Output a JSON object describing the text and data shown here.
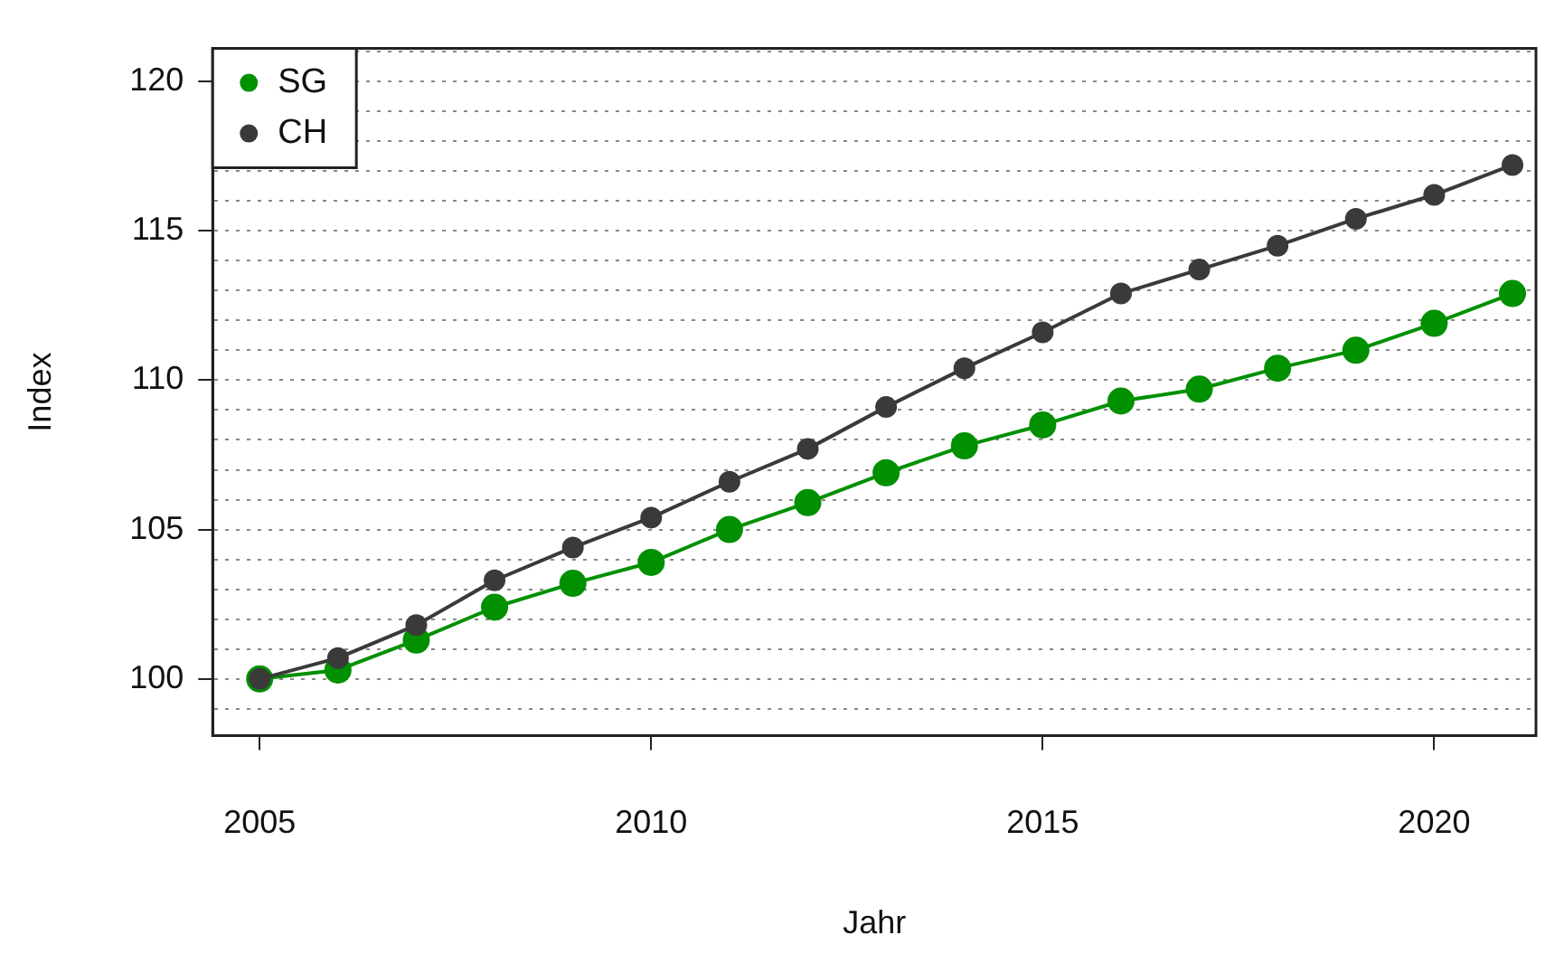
{
  "chart_data": {
    "type": "line",
    "xlabel": "Jahr",
    "ylabel": "Index",
    "x": [
      2005,
      2006,
      2007,
      2008,
      2009,
      2010,
      2011,
      2012,
      2013,
      2014,
      2015,
      2016,
      2017,
      2018,
      2019,
      2020,
      2021
    ],
    "series": [
      {
        "name": "SG",
        "color": "#009000",
        "values": [
          100,
          100.3,
          101.3,
          102.4,
          103.2,
          103.9,
          105.0,
          105.9,
          106.9,
          107.8,
          108.5,
          109.3,
          109.7,
          110.4,
          111.0,
          111.9,
          112.9
        ]
      },
      {
        "name": "CH",
        "color": "#3a3a3a",
        "values": [
          100,
          100.7,
          101.8,
          103.3,
          104.4,
          105.4,
          106.6,
          107.7,
          109.1,
          110.4,
          111.6,
          112.9,
          113.7,
          114.5,
          115.4,
          116.2,
          117.2
        ]
      }
    ],
    "xlim": [
      2004.4,
      2021.3
    ],
    "xticks": [
      2005,
      2010,
      2015,
      2020
    ],
    "ylim": [
      98.1,
      121.1
    ],
    "yticks": [
      {
        "value": 99,
        "label": null
      },
      100,
      {
        "value": 101,
        "label": null
      },
      {
        "value": 102,
        "label": null
      },
      {
        "value": 103,
        "label": null
      },
      {
        "value": 104,
        "label": null
      },
      105,
      {
        "value": 106,
        "label": null
      },
      {
        "value": 107,
        "label": null
      },
      {
        "value": 108,
        "label": null
      },
      {
        "value": 109,
        "label": null
      },
      110,
      {
        "value": 111,
        "label": null
      },
      {
        "value": 112,
        "label": null
      },
      {
        "value": 113,
        "label": null
      },
      {
        "value": 114,
        "label": null
      },
      115,
      {
        "value": 116,
        "label": null
      },
      {
        "value": 117,
        "label": null
      },
      {
        "value": 118,
        "label": null
      },
      {
        "value": 119,
        "label": null
      },
      120,
      {
        "value": 121,
        "label": null
      }
    ],
    "grid": "y",
    "legend": "top left",
    "marker": "circle",
    "line_style": "solid"
  }
}
